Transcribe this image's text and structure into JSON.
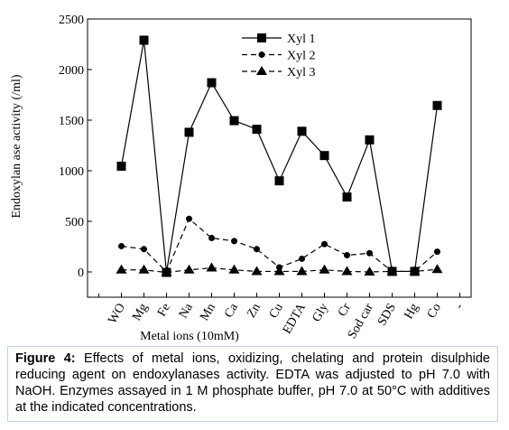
{
  "chart_data": {
    "type": "line",
    "y_label": "Endoxylan ase activity (/ml)",
    "x_label": "Metal ions (10mM)",
    "categories": [
      "WO",
      "Mg",
      "Fe",
      "Na",
      "Mn",
      "Ca",
      "Zn",
      "Cu",
      "EDTA",
      "Gly",
      "Cr",
      "Sod car",
      "SDS",
      "Hg",
      "Co",
      "-"
    ],
    "series": [
      {
        "name": "Xyl 1",
        "color": "#000000",
        "marker": "square",
        "dash": false,
        "values": [
          1045,
          2290,
          -5,
          1380,
          1870,
          1495,
          1410,
          900,
          1390,
          1150,
          740,
          1305,
          5,
          5,
          1645,
          null
        ]
      },
      {
        "name": "Xyl 2",
        "color": "#000000",
        "marker": "circle",
        "dash": true,
        "values": [
          255,
          225,
          0,
          525,
          335,
          305,
          225,
          45,
          130,
          275,
          165,
          185,
          5,
          5,
          200,
          null
        ]
      },
      {
        "name": "Xyl 3",
        "color": "#000000",
        "marker": "triangle",
        "dash": true,
        "values": [
          20,
          20,
          -5,
          20,
          40,
          20,
          5,
          5,
          5,
          20,
          5,
          0,
          5,
          5,
          25,
          null
        ]
      }
    ],
    "ylim": [
      -250,
      2500
    ],
    "yticks": [
      0,
      500,
      1000,
      1500,
      2000,
      2500
    ]
  },
  "caption": {
    "label": "Figure 4:",
    "text": " Effects of metal ions, oxidizing, chelating and protein disulphide reducing agent on endoxylanases activity. EDTA was adjusted to pH 7.0 with NaOH. Enzymes assayed in 1 M phosphate buffer, pH 7.0 at 50°C with additives at the indicated concentrations."
  }
}
